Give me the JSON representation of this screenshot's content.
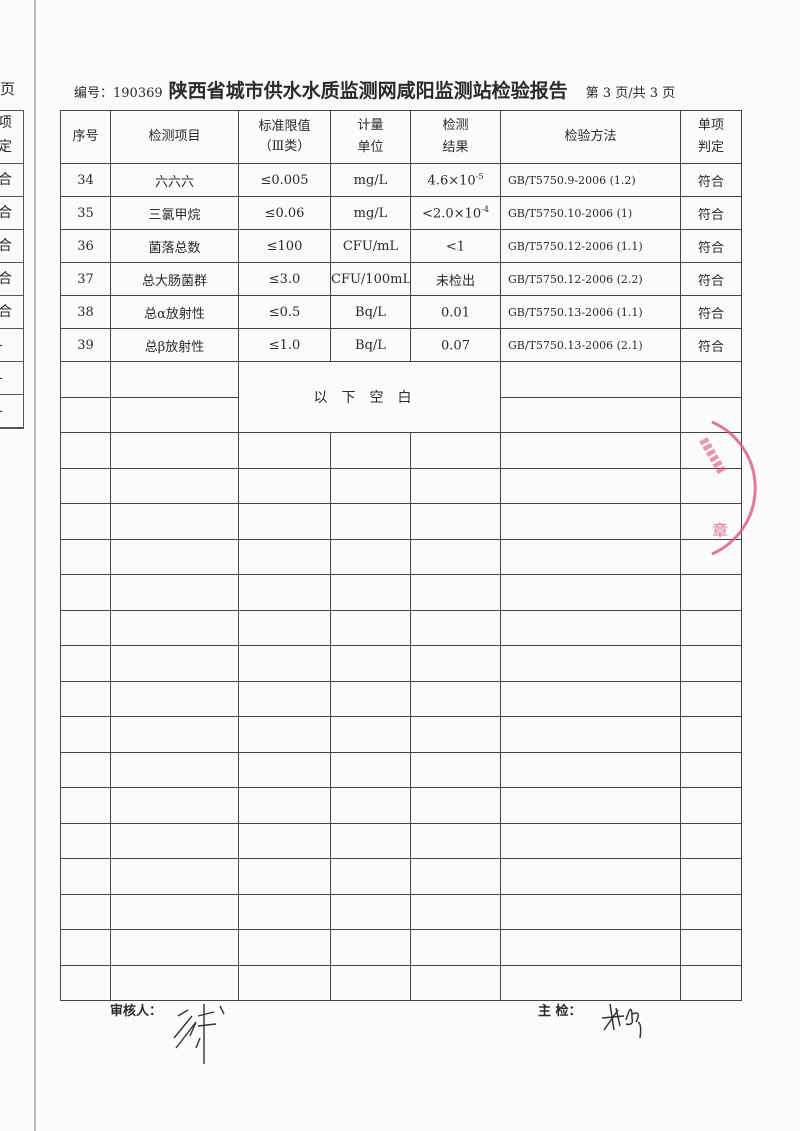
{
  "previous_page_edge": {
    "page_fragment": "页",
    "header_fragment": [
      "项",
      "定"
    ],
    "cells": [
      "合",
      "合",
      "合",
      "合",
      "合",
      "-",
      "-",
      "-"
    ]
  },
  "header": {
    "report_no_label": "编号：190369",
    "title": "陕西省城市供水水质监测网咸阳监测站检验报告",
    "page_info": "第 3 页/共 3 页"
  },
  "table": {
    "columns": [
      "序号",
      "检测项目",
      "标准限值（Ⅲ类）",
      "计量单位",
      "检测结果",
      "检验方法",
      "单项判定"
    ],
    "column_lines": [
      [
        "序号"
      ],
      [
        "检测项目"
      ],
      [
        "标准限值",
        "（Ⅲ类）"
      ],
      [
        "计量",
        "单位"
      ],
      [
        "检测",
        "结果"
      ],
      [
        "检验方法"
      ],
      [
        "单项",
        "判定"
      ]
    ],
    "rows": [
      {
        "no": "34",
        "item": "六六六",
        "limit": "≤0.005",
        "unit": "mg/L",
        "result": "4.6×10",
        "result_exp": "-5",
        "method": "GB/T5750.9-2006 (1.2)",
        "verdict": "符合"
      },
      {
        "no": "35",
        "item": "三氯甲烷",
        "limit": "≤0.06",
        "unit": "mg/L",
        "result": "<2.0×10",
        "result_exp": "-4",
        "method": "GB/T5750.10-2006 (1)",
        "verdict": "符合"
      },
      {
        "no": "36",
        "item": "菌落总数",
        "limit": "≤100",
        "unit": "CFU/mL",
        "result": "<1",
        "result_exp": "",
        "method": "GB/T5750.12-2006 (1.1)",
        "verdict": "符合"
      },
      {
        "no": "37",
        "item": "总大肠菌群",
        "limit": "≤3.0",
        "unit": "CFU/100mL",
        "result": "未检出",
        "result_exp": "",
        "method": "GB/T5750.12-2006 (2.2)",
        "verdict": "符合"
      },
      {
        "no": "38",
        "item": "总α放射性",
        "limit": "≤0.5",
        "unit": "Bq/L",
        "result": "0.01",
        "result_exp": "",
        "method": "GB/T5750.13-2006 (1.1)",
        "verdict": "符合"
      },
      {
        "no": "39",
        "item": "总β放射性",
        "limit": "≤1.0",
        "unit": "Bq/L",
        "result": "0.07",
        "result_exp": "",
        "method": "GB/T5750.13-2006 (2.1)",
        "verdict": "符合"
      }
    ],
    "blank_note": "以下空白"
  },
  "footer": {
    "reviewer_label": "审核人：",
    "inspector_label": "主  检："
  },
  "stamp": {
    "color": "#d9587f",
    "visible_char": "章"
  }
}
